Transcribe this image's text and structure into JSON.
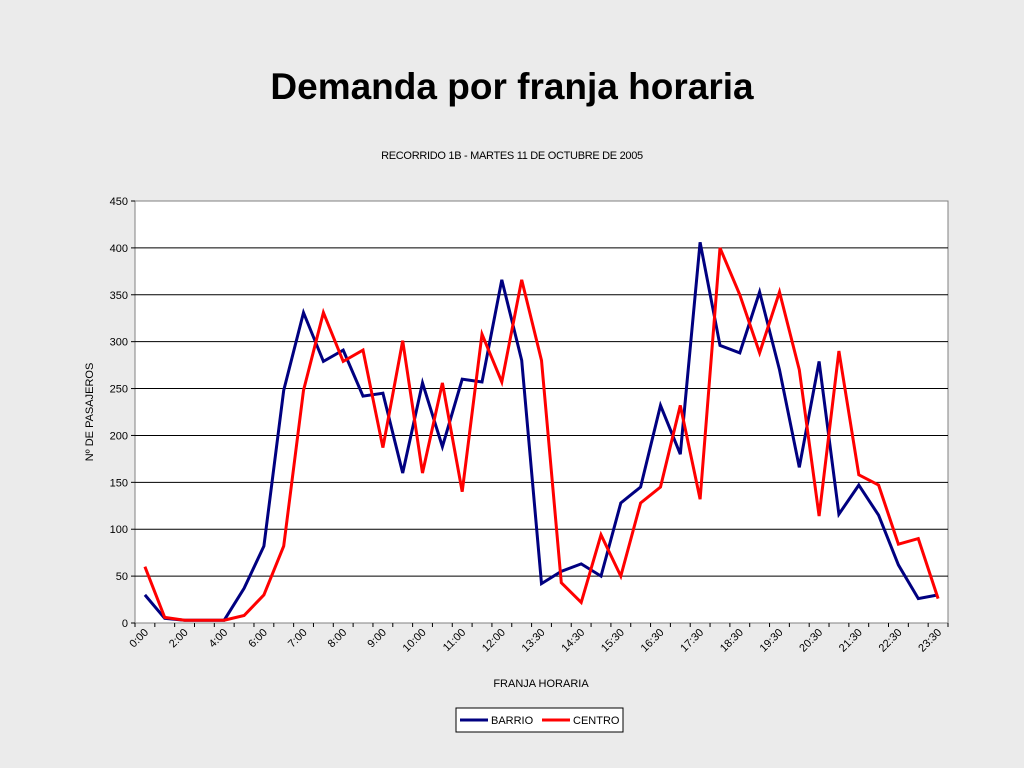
{
  "slide": {
    "title": "Demanda por franja horaria"
  },
  "chart_data": {
    "type": "line",
    "subtitle": "RECORRIDO 1B - MARTES 11 DE OCTUBRE DE 2005",
    "xlabel": "FRANJA HORARIA",
    "ylabel": "Nº DE PASAJEROS",
    "ylim": [
      0,
      450
    ],
    "yticks": [
      0,
      50,
      100,
      150,
      200,
      250,
      300,
      350,
      400,
      450
    ],
    "x_tick_labels": [
      "0:00",
      "2:00",
      "4:00",
      "6:00",
      "7:00",
      "8:00",
      "9:00",
      "10:00",
      "11:00",
      "12:00",
      "13:30",
      "14:30",
      "15:30",
      "16:30",
      "17:30",
      "18:30",
      "19:30",
      "20:30",
      "21:30",
      "22:30",
      "23:30"
    ],
    "grid": "horizontal",
    "legend_position": "bottom",
    "series": [
      {
        "name": "BARRIO",
        "color": "#000080",
        "values": [
          30,
          5,
          3,
          3,
          3,
          37,
          82,
          248,
          331,
          279,
          291,
          242,
          245,
          160,
          256,
          188,
          260,
          257,
          366,
          280,
          42,
          55,
          63,
          50,
          128,
          145,
          232,
          180,
          406,
          296,
          288,
          353,
          270,
          166,
          279,
          116,
          147,
          115,
          62,
          26,
          30
        ]
      },
      {
        "name": "CENTRO",
        "color": "#ff0000",
        "values": [
          60,
          6,
          3,
          3,
          3,
          8,
          30,
          82,
          248,
          331,
          279,
          291,
          187,
          301,
          160,
          256,
          140,
          308,
          257,
          366,
          280,
          43,
          22,
          94,
          50,
          128,
          145,
          232,
          132,
          400,
          350,
          288,
          353,
          270,
          114,
          290,
          158,
          147,
          84,
          90,
          26
        ]
      }
    ]
  }
}
